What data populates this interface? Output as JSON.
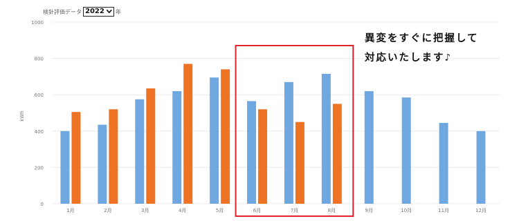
{
  "header": {
    "label": "検針評価データ",
    "selected_year": "2022",
    "suffix": "年"
  },
  "annotation": {
    "line1": "異変をすぐに把握して",
    "line2": "対応いたします♪"
  },
  "colors": {
    "series1": "#6fa8e0",
    "series2": "#ee7325",
    "highlight": "#e0202c",
    "grid": "#ececec",
    "axis_text": "#777777"
  },
  "chart_data": {
    "type": "bar",
    "categories": [
      "1月",
      "2月",
      "3月",
      "4月",
      "5月",
      "6月",
      "7月",
      "8月",
      "9月",
      "10月",
      "11月",
      "12月"
    ],
    "series": [
      {
        "values": [
          400,
          435,
          575,
          620,
          695,
          565,
          670,
          715,
          620,
          585,
          445,
          400
        ]
      },
      {
        "values": [
          505,
          520,
          635,
          770,
          740,
          520,
          450,
          550,
          null,
          null,
          null,
          null
        ]
      }
    ],
    "ylabel": "kWh",
    "ylim": [
      0,
      1000
    ],
    "yticks": [
      0,
      200,
      400,
      600,
      800,
      1000
    ],
    "grid": true,
    "highlight_categories": [
      "6月",
      "7月",
      "8月"
    ]
  }
}
